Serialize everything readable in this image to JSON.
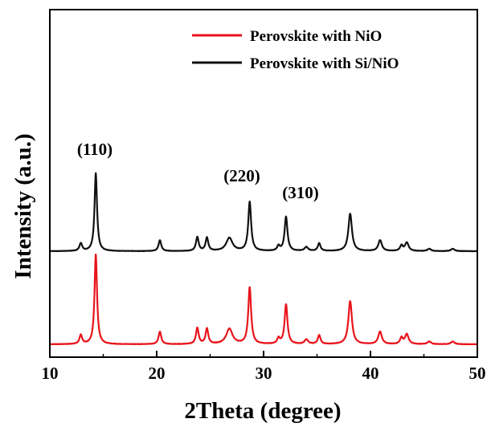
{
  "chart_data": {
    "type": "line",
    "title": "",
    "xlabel": "2Theta (degree)",
    "ylabel": "Intensity (a.u.)",
    "xlim": [
      10,
      50
    ],
    "x_ticks": [
      "10",
      "20",
      "30",
      "40",
      "50"
    ],
    "y_ticks_shown": false,
    "grid": false,
    "legend_position": "top-right",
    "peak_labels": [
      {
        "text": "(110)",
        "x": 14.3
      },
      {
        "text": "(220)",
        "x": 28.7
      },
      {
        "text": "(310)",
        "x": 32.1
      }
    ],
    "peaks": [
      {
        "x": 12.9,
        "w": 0.15,
        "h": 0.1
      },
      {
        "x": 14.3,
        "w": 0.14,
        "h": 1.0
      },
      {
        "x": 20.3,
        "w": 0.15,
        "h": 0.14
      },
      {
        "x": 23.8,
        "w": 0.15,
        "h": 0.18
      },
      {
        "x": 24.7,
        "w": 0.15,
        "h": 0.17
      },
      {
        "x": 26.8,
        "w": 0.35,
        "h": 0.17
      },
      {
        "x": 28.7,
        "w": 0.16,
        "h": 0.63
      },
      {
        "x": 31.4,
        "w": 0.15,
        "h": 0.06
      },
      {
        "x": 32.1,
        "w": 0.16,
        "h": 0.44
      },
      {
        "x": 34.0,
        "w": 0.2,
        "h": 0.05
      },
      {
        "x": 35.2,
        "w": 0.15,
        "h": 0.1
      },
      {
        "x": 38.1,
        "w": 0.2,
        "h": 0.48
      },
      {
        "x": 40.9,
        "w": 0.2,
        "h": 0.14
      },
      {
        "x": 42.9,
        "w": 0.15,
        "h": 0.07
      },
      {
        "x": 43.4,
        "w": 0.2,
        "h": 0.11
      },
      {
        "x": 45.5,
        "w": 0.2,
        "h": 0.03
      },
      {
        "x": 47.7,
        "w": 0.2,
        "h": 0.03
      }
    ],
    "series": [
      {
        "name": "Perovskite with NiO",
        "color": "#e8141b",
        "scale": 1.0
      },
      {
        "name": "Perovskite with Si/NiO",
        "color": "#111111",
        "scale": 0.97
      }
    ]
  }
}
